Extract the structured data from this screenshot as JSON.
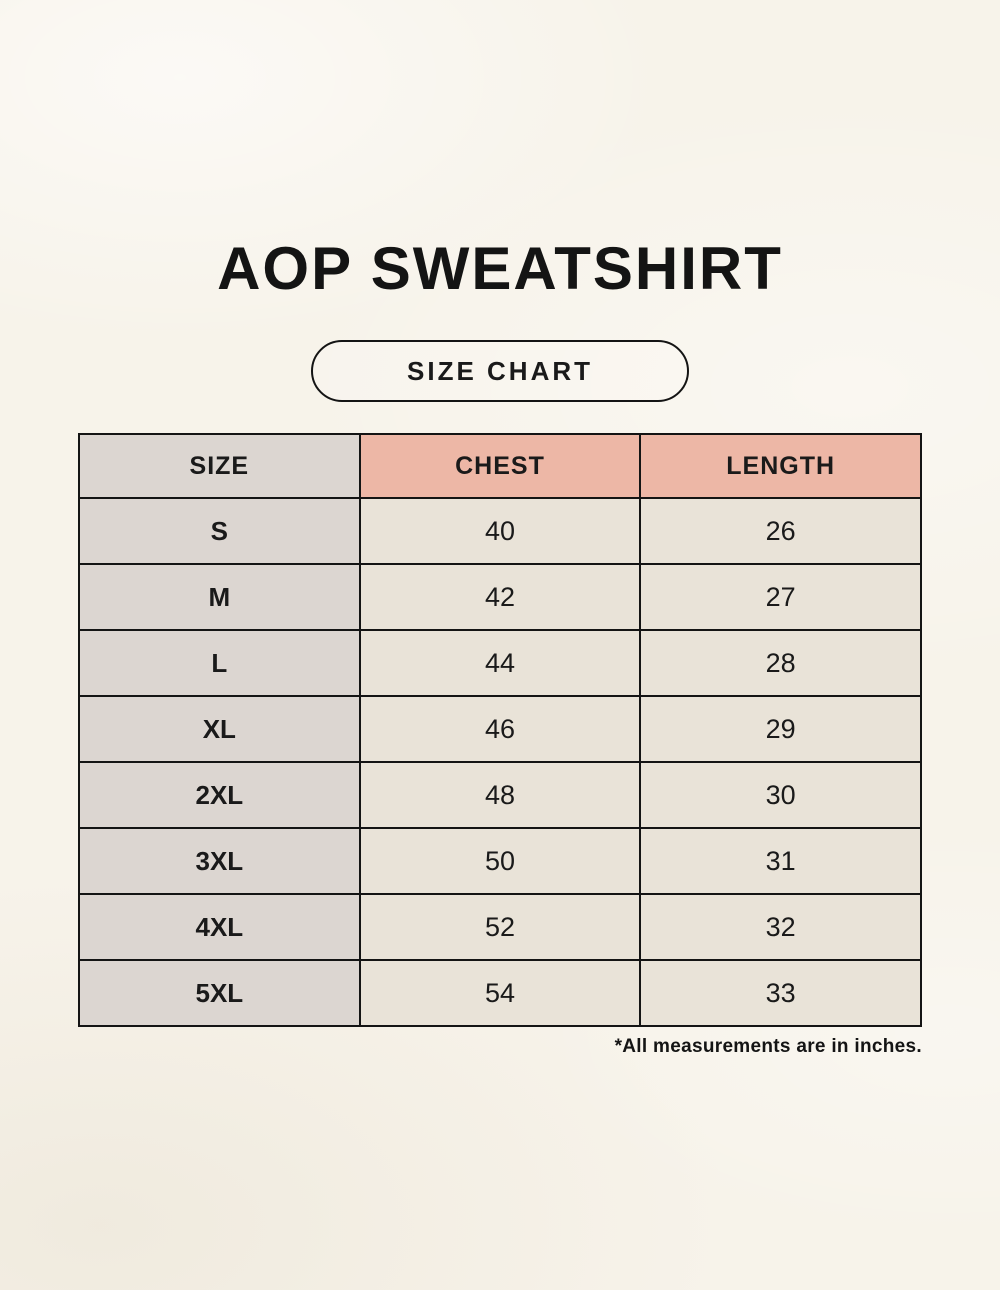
{
  "page": {
    "title": "AOP SWEATSHIRT",
    "badge_label": "SIZE CHART",
    "footnote": "*All measurements are in inches."
  },
  "table": {
    "headers": [
      "SIZE",
      "CHEST",
      "LENGTH"
    ],
    "rows": [
      {
        "size": "S",
        "chest": "40",
        "length": "26"
      },
      {
        "size": "M",
        "chest": "42",
        "length": "27"
      },
      {
        "size": "L",
        "chest": "44",
        "length": "28"
      },
      {
        "size": "XL",
        "chest": "46",
        "length": "29"
      },
      {
        "size": "2XL",
        "chest": "48",
        "length": "30"
      },
      {
        "size": "3XL",
        "chest": "50",
        "length": "31"
      },
      {
        "size": "4XL",
        "chest": "52",
        "length": "32"
      },
      {
        "size": "5XL",
        "chest": "54",
        "length": "33"
      }
    ]
  },
  "chart_data": {
    "type": "table",
    "title": "AOP SWEATSHIRT",
    "subtitle": "SIZE CHART",
    "columns": [
      "SIZE",
      "CHEST",
      "LENGTH"
    ],
    "rows": [
      [
        "S",
        40,
        26
      ],
      [
        "M",
        42,
        27
      ],
      [
        "L",
        44,
        28
      ],
      [
        "XL",
        46,
        29
      ],
      [
        "2XL",
        48,
        30
      ],
      [
        "3XL",
        50,
        31
      ],
      [
        "4XL",
        52,
        32
      ],
      [
        "5XL",
        54,
        33
      ]
    ],
    "units_note": "*All measurements are in inches."
  },
  "colors": {
    "page_background": "#f7f3ea",
    "header_pink": "#edb7a6",
    "size_column_gray": "#dcd6d1",
    "cell_cream": "#e9e3d8",
    "border_black": "#141414",
    "text_black": "#1a1a1a"
  }
}
